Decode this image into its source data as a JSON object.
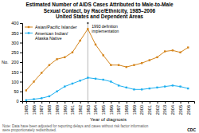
{
  "chart_data": {
    "type": "line",
    "title": "Estimated Number of AIDS Cases Attributed to Male-to-Male\nSexual Contact, by Race/Ethnicity, 1985–2006\nUnited States and Dependent Areas",
    "x_label": "Year of diagnosis",
    "y_label": "No.",
    "x": [
      1985,
      1986,
      1987,
      1988,
      1989,
      1990,
      1991,
      1992,
      1993,
      1994,
      1995,
      1996,
      1997,
      1998,
      1999,
      2000,
      2001,
      2002,
      2003,
      2004,
      2005,
      2006
    ],
    "series": [
      {
        "name": "Asian/Pacific Islander",
        "color": "#d4841a",
        "marker": "square",
        "values": [
          55,
          100,
          145,
          185,
          215,
          225,
          250,
          310,
          370,
          290,
          235,
          185,
          185,
          175,
          185,
          195,
          210,
          225,
          255,
          260,
          250,
          275
        ]
      },
      {
        "name": "American Indian/\nAlaska Native",
        "color": "#1eb0f0",
        "marker": "square",
        "values": [
          5,
          10,
          15,
          25,
          50,
          75,
          90,
          105,
          120,
          115,
          110,
          100,
          80,
          70,
          60,
          60,
          65,
          70,
          75,
          80,
          75,
          65
        ]
      }
    ],
    "xlim": [
      1984.5,
      2006.8
    ],
    "xticks": [
      1985,
      1986,
      1987,
      1988,
      1989,
      1990,
      1991,
      1992,
      1993,
      1994,
      1995,
      1996,
      1997,
      1998,
      1999,
      2000,
      2001,
      2002,
      2003,
      2004,
      2005,
      2006
    ],
    "ylim": [
      0,
      400
    ],
    "yticks": [
      0,
      50,
      100,
      150,
      200,
      250,
      300,
      350,
      400
    ],
    "grid": false,
    "legend": "upper left",
    "annotations": [
      {
        "text": "1993 definition\nimplementation",
        "x": 1993,
        "y": 400
      },
      {
        "text": "CDC"
      }
    ],
    "note": "Note: Data have been adjusted for reporting delays and cases without risk factor information\nwere proportionately redistributed."
  }
}
